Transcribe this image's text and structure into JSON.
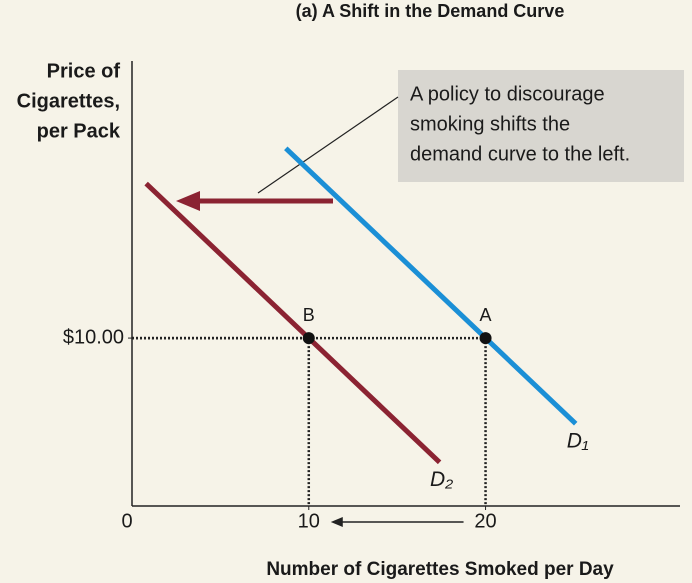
{
  "chart_data": {
    "type": "line",
    "title": "(a) A Shift in the Demand Curve",
    "y_label": [
      "Price of",
      "Cigarettes,",
      "per Pack"
    ],
    "x_label": "Number of Cigarettes Smoked per Day",
    "xlim": [
      0,
      31
    ],
    "ylim": [
      0,
      26.5
    ],
    "xticks": [
      0,
      10,
      20
    ],
    "yticks": [
      {
        "value": 10,
        "label": "$10.00"
      }
    ],
    "series": [
      {
        "name": "D₁",
        "color": "#1b8fd6",
        "x": [
          8.7,
          25.1
        ],
        "y": [
          21.3,
          4.9
        ]
      },
      {
        "name": "D₂",
        "color": "#8b2332",
        "x": [
          0.8,
          17.4
        ],
        "y": [
          19.2,
          2.6
        ]
      }
    ],
    "points": [
      {
        "label": "A",
        "x": 20,
        "y": 10
      },
      {
        "label": "B",
        "x": 10,
        "y": 10
      }
    ],
    "annotation": [
      "A policy to discourage",
      "smoking shifts the",
      "demand curve to the left."
    ]
  }
}
